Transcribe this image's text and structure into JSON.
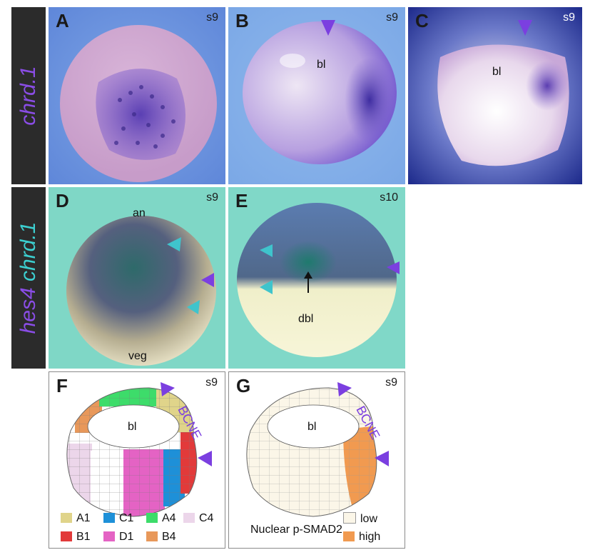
{
  "rows": {
    "top": {
      "label": "chrd.1",
      "color": "#8a4de6"
    },
    "middle": {
      "label_part1": "hes4",
      "label_part2": "chrd.1",
      "color1": "#8a4de6",
      "color2": "#3ccfd0"
    }
  },
  "panels": {
    "A": {
      "letter": "A",
      "stage": "s9"
    },
    "B": {
      "letter": "B",
      "stage": "s9",
      "annotation": "bl"
    },
    "C": {
      "letter": "C",
      "stage": "s9",
      "annotation": "bl"
    },
    "D": {
      "letter": "D",
      "stage": "s9",
      "top_label": "an",
      "bottom_label": "veg"
    },
    "E": {
      "letter": "E",
      "stage": "s10",
      "annotation": "dbl"
    },
    "F": {
      "letter": "F",
      "stage": "s9",
      "annotation": "bl",
      "region_label": "BCNE",
      "legend": [
        {
          "name": "A1",
          "color": "#e0d48a"
        },
        {
          "name": "C1",
          "color": "#1e90d8"
        },
        {
          "name": "A4",
          "color": "#3ddc6a"
        },
        {
          "name": "C4",
          "color": "#ecd6ea"
        },
        {
          "name": "B1",
          "color": "#e23a3a"
        },
        {
          "name": "D1",
          "color": "#e463c4"
        },
        {
          "name": "B4",
          "color": "#e8985a"
        }
      ]
    },
    "G": {
      "letter": "G",
      "stage": "s9",
      "annotation": "bl",
      "region_label": "BCNE",
      "legend_title": "Nuclear p-SMAD2",
      "legend": [
        {
          "name": "low",
          "color": "#fbf6e8"
        },
        {
          "name": "high",
          "color": "#f19a50"
        }
      ]
    }
  },
  "colors": {
    "arrow_purple": "#7b3fe0",
    "arrow_cyan": "#3fc4cc"
  }
}
